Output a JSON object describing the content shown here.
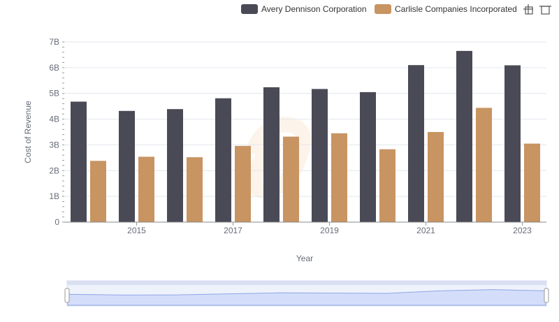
{
  "chart_data": {
    "type": "bar",
    "title": "",
    "xlabel": "Year",
    "ylabel": "Cost of Revenue",
    "x": [
      2014,
      2015,
      2016,
      2017,
      2018,
      2019,
      2020,
      2021,
      2022,
      2023
    ],
    "x_tick_labels": [
      "2015",
      "2017",
      "2019",
      "2021",
      "2023"
    ],
    "y_tick_labels": [
      "0",
      "1B",
      "2B",
      "3B",
      "4B",
      "5B",
      "6B",
      "7B"
    ],
    "ylim": [
      0,
      7000000000
    ],
    "grid": true,
    "legend_position": "top-right",
    "series": [
      {
        "name": "Avery Dennison Corporation",
        "color": "#4a4a57",
        "values": [
          4680000000,
          4320000000,
          4390000000,
          4810000000,
          5240000000,
          5170000000,
          5050000000,
          6100000000,
          6650000000,
          6090000000
        ]
      },
      {
        "name": "Carlisle Companies Incorporated",
        "color": "#c89462",
        "values": [
          2380000000,
          2540000000,
          2520000000,
          2960000000,
          3320000000,
          3450000000,
          2830000000,
          3500000000,
          4440000000,
          3050000000
        ]
      }
    ],
    "navigator": {
      "series_values": [
        4680000000,
        4320000000,
        4390000000,
        4810000000,
        5240000000,
        5170000000,
        5050000000,
        6100000000,
        6650000000,
        6090000000
      ]
    }
  },
  "toolbar": {
    "icons": [
      "crosshair-icon",
      "expand-icon"
    ]
  }
}
